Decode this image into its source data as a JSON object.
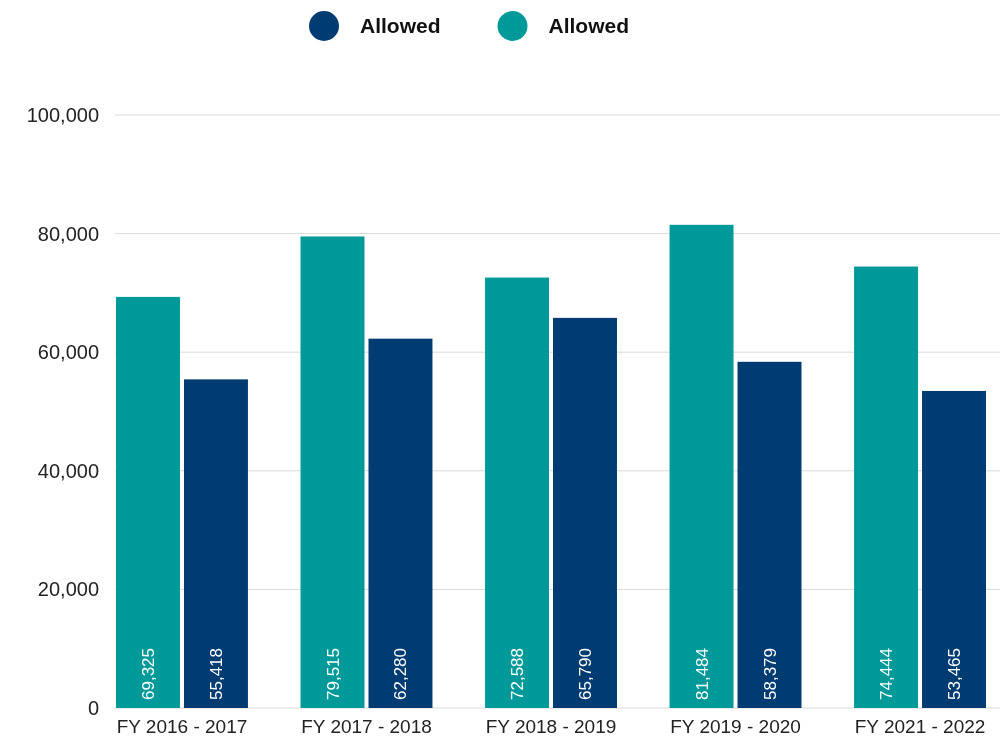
{
  "chart_data": {
    "type": "bar",
    "categories": [
      "FY 2016 - 2017",
      "FY 2017 - 2018",
      "FY 2018 - 2019",
      "FY 2019 - 2020",
      "FY 2021 - 2022"
    ],
    "series": [
      {
        "name": "Allowed",
        "color": "#009999",
        "values": [
          69325,
          79515,
          72588,
          81484,
          74444
        ],
        "value_labels": [
          "69,325",
          "79,515",
          "72,588",
          "81,484",
          "74,444"
        ]
      },
      {
        "name": "Allowed",
        "color": "#003b71",
        "values": [
          55418,
          62280,
          65790,
          58379,
          53465
        ],
        "value_labels": [
          "55,418",
          "62,280",
          "65,790",
          "58,379",
          "53,465"
        ]
      }
    ],
    "ylim": [
      0,
      100000
    ],
    "yticks": [
      0,
      {
        "value": 20000,
        "label": "20,000"
      },
      {
        "value": 40000,
        "label": "40,000"
      },
      {
        "value": 60000,
        "label": "60,000"
      },
      {
        "value": 80000,
        "label": "80,000"
      },
      {
        "value": 100000,
        "label": "100,000"
      }
    ],
    "grid": "y",
    "legend": "top"
  }
}
